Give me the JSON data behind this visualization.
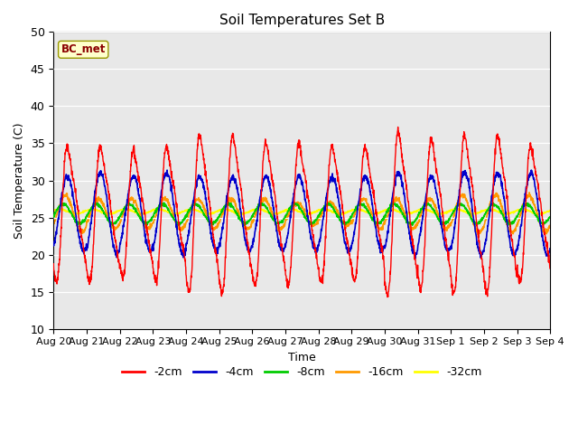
{
  "title": "Soil Temperatures Set B",
  "xlabel": "Time",
  "ylabel": "Soil Temperature (C)",
  "ylim": [
    10,
    50
  ],
  "yticks": [
    10,
    15,
    20,
    25,
    30,
    35,
    40,
    45,
    50
  ],
  "annotation_text": "BC_met",
  "series_colors": {
    "-2cm": "#ff0000",
    "-4cm": "#0000cc",
    "-8cm": "#00cc00",
    "-16cm": "#ff9900",
    "-32cm": "#ffff00"
  },
  "legend_labels": [
    "-2cm",
    "-4cm",
    "-8cm",
    "-16cm",
    "-32cm"
  ],
  "x_tick_labels": [
    "Aug 20",
    "Aug 21",
    "Aug 22",
    "Aug 23",
    "Aug 24",
    "Aug 25",
    "Aug 26",
    "Aug 27",
    "Aug 28",
    "Aug 29",
    "Aug 30",
    "Aug 31",
    "Sep 1",
    "Sep 2",
    "Sep 3",
    "Sep 4"
  ],
  "n_days": 15,
  "pts_per_day": 144,
  "mean_temp": 25.5,
  "background_color": "#e8e8e8",
  "figure_bg": "#ffffff"
}
